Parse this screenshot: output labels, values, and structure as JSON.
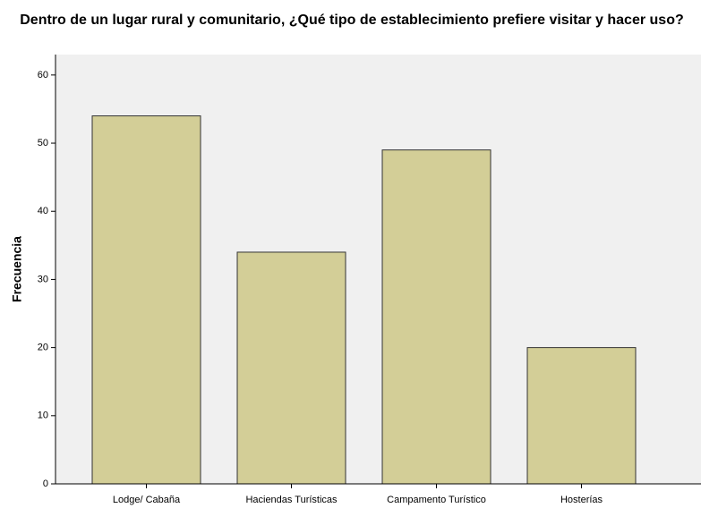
{
  "chart_data": {
    "type": "bar",
    "title": "Dentro de un lugar rural y comunitario, ¿Qué tipo de establecimiento prefiere visitar y hacer uso?",
    "y_label": "Frecuencia",
    "categories": [
      "Lodge/ Cabaña",
      "Haciendas Turísticas",
      "Campamento Turístico",
      "Hosterías"
    ],
    "values": [
      54,
      34,
      49,
      20
    ],
    "color": "#d3ce97",
    "ylim": [
      0,
      63
    ],
    "yticks": [
      0,
      10,
      20,
      30,
      40,
      50,
      60
    ],
    "grid": false
  }
}
